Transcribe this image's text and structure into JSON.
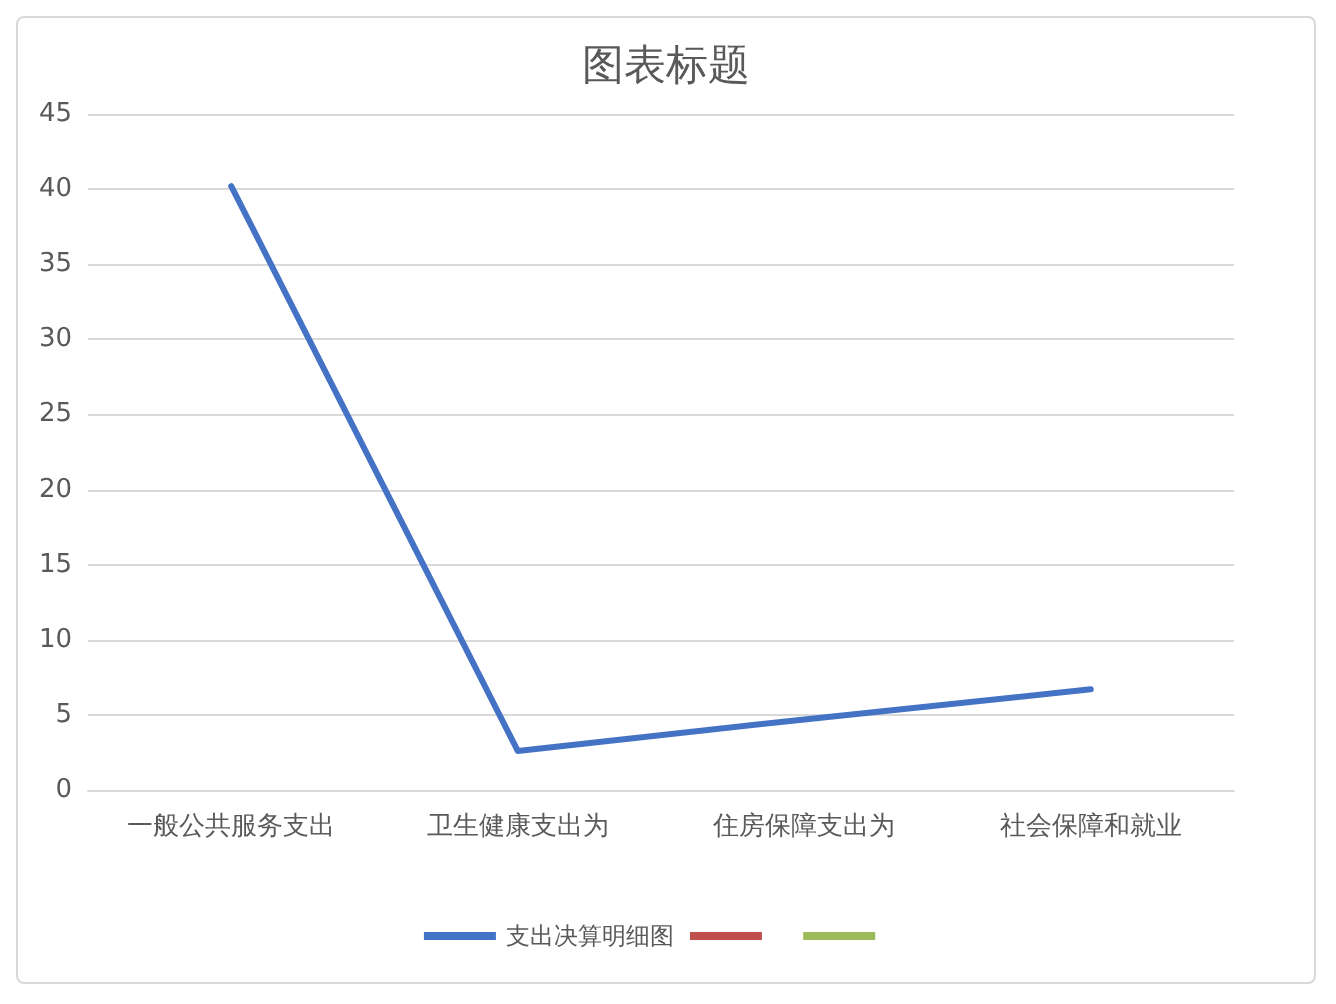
{
  "chart_data": {
    "type": "line",
    "title": "图表标题",
    "categories": [
      "一般公共服务支出",
      "卫生健康支出为",
      "住房保障支出为",
      "社会保障和就业"
    ],
    "series": [
      {
        "name": "支出决算明细图",
        "color": "#4472c4",
        "values": [
          40.2,
          2.6,
          4.7,
          6.7
        ]
      },
      {
        "color": "#c0504d",
        "values": [
          null,
          null,
          null,
          null
        ]
      },
      {
        "color": "#9bbb59",
        "values": [
          null,
          null,
          null,
          null
        ]
      }
    ],
    "ylim": [
      0,
      45
    ],
    "yticks": [
      0,
      5,
      10,
      15,
      20,
      25,
      30,
      35,
      40,
      45
    ],
    "grid": "y",
    "legend": "bottom",
    "marker": "none",
    "line_style": "solid"
  }
}
